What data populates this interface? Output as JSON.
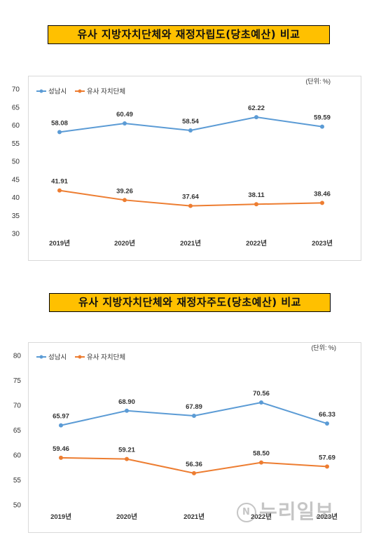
{
  "title1": "유사  지방자치단체와  재정자립도(당초예산)  비교",
  "title2": "유사  지방자치단체와  재정자주도(당초예산)  비교",
  "watermark": {
    "mark": "N",
    "text": "누리일보"
  },
  "chart_data": [
    {
      "type": "line",
      "title": "유사  지방자치단체와  재정자립도(당초예산)  비교",
      "unit_label": "(단위: %)",
      "categories": [
        "2019년",
        "2020년",
        "2021년",
        "2022년",
        "2023년"
      ],
      "ylim": [
        30,
        70
      ],
      "yticks": [
        30,
        35,
        40,
        45,
        50,
        55,
        60,
        65,
        70
      ],
      "grid": false,
      "legend_position": "top-left",
      "series": [
        {
          "name": "성남시",
          "color": "#5b9bd5",
          "values": [
            58.08,
            60.49,
            58.54,
            62.22,
            59.59
          ],
          "labels": [
            "58.08",
            "60.49",
            "58.54",
            "62.22",
            "59.59"
          ]
        },
        {
          "name": "유사 자치단체",
          "color": "#ed7d31",
          "values": [
            41.91,
            39.26,
            37.64,
            38.11,
            38.46
          ],
          "labels": [
            "41.91",
            "39.26",
            "37.64",
            "38.11",
            "38.46"
          ]
        }
      ]
    },
    {
      "type": "line",
      "title": "유사  지방자치단체와  재정자주도(당초예산)  비교",
      "unit_label": "(단위: %)",
      "categories": [
        "2019년",
        "2020년",
        "2021년",
        "2022년",
        "2023년"
      ],
      "ylim": [
        50,
        80
      ],
      "yticks": [
        50,
        55,
        60,
        65,
        70,
        75,
        80
      ],
      "grid": false,
      "legend_position": "top-left",
      "series": [
        {
          "name": "성남시",
          "color": "#5b9bd5",
          "values": [
            65.97,
            68.9,
            67.89,
            70.56,
            66.33
          ],
          "labels": [
            "65.97",
            "68.90",
            "67.89",
            "70.56",
            "66.33"
          ]
        },
        {
          "name": "유사 자치단체",
          "color": "#ed7d31",
          "values": [
            59.46,
            59.21,
            56.36,
            58.5,
            57.69
          ],
          "labels": [
            "59.46",
            "59.21",
            "56.36",
            "58.50",
            "57.69"
          ]
        }
      ]
    }
  ]
}
